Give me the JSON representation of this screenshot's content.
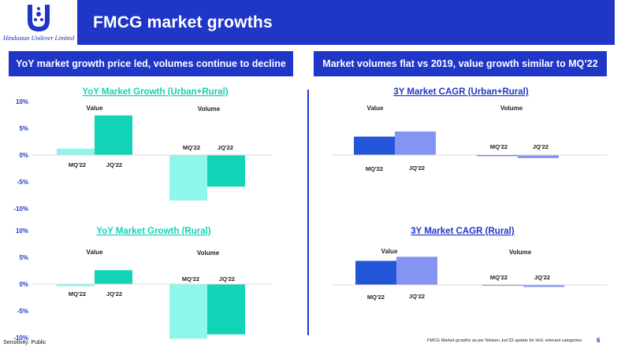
{
  "logo": {
    "text": "Hindustan Unilever Limited"
  },
  "header": {
    "title": "FMCG market growths"
  },
  "banners": {
    "left": "YoY market growth price led, volumes continue to decline",
    "right": "Market volumes flat vs 2019, value growth similar to MQ’22"
  },
  "colors": {
    "brand_blue": "#1f36c7",
    "teal_light": "#8ef7ea",
    "teal_dark": "#12d3b6",
    "blue_dark": "#2255d8",
    "blue_light": "#8394f2"
  },
  "chart_data": [
    {
      "type": "bar",
      "title": "YoY Market Growth (Urban+Rural)",
      "ylim": [
        -10,
        10
      ],
      "ytick_labels": [
        "10%",
        "5%",
        "0%",
        "-5%",
        "-10%"
      ],
      "groups": [
        "Value",
        "Volume"
      ],
      "series": [
        {
          "name": "MQ'22",
          "values": [
            1.2,
            -8.5
          ]
        },
        {
          "name": "JQ'22",
          "values": [
            7.4,
            -5.9
          ]
        }
      ]
    },
    {
      "type": "bar",
      "title": "YoY Market Growth (Rural)",
      "ylim": [
        -10,
        10
      ],
      "ytick_labels": [
        "10%",
        "5%",
        "0%",
        "-5%",
        "-10%"
      ],
      "groups": [
        "Value",
        "Volume"
      ],
      "series": [
        {
          "name": "MQ'22",
          "values": [
            -0.4,
            -10.2
          ]
        },
        {
          "name": "JQ'22",
          "values": [
            2.6,
            -9.4
          ]
        }
      ]
    },
    {
      "type": "bar",
      "title": "3Y Market CAGR (Urban+Rural)",
      "groups": [
        "Value",
        "Volume"
      ],
      "series": [
        {
          "name": "MQ'22",
          "values": [
            3.6,
            -0.2
          ]
        },
        {
          "name": "JQ'22",
          "values": [
            4.6,
            -0.6
          ]
        }
      ]
    },
    {
      "type": "bar",
      "title": "3Y Market CAGR (Rural)",
      "groups": [
        "Value",
        "Volume"
      ],
      "series": [
        {
          "name": "MQ'22",
          "values": [
            4.7,
            -0.1
          ]
        },
        {
          "name": "JQ'22",
          "values": [
            5.5,
            -0.4
          ]
        }
      ]
    }
  ],
  "footer": {
    "sensitivity": "Sensitivity: Public",
    "source": "FMCG Market growths as per Nielsen Jun'22 update for HUL relevant categories",
    "page": "6"
  }
}
